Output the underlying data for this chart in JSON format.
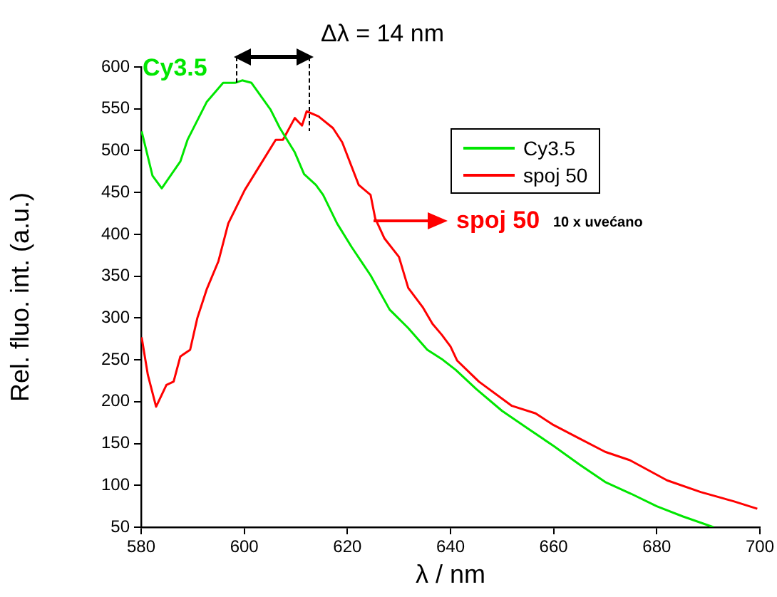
{
  "chart_data": {
    "type": "line",
    "xlabel": "λ / nm",
    "ylabel": "Rel. fluo. int. (a.u.)",
    "xlim": [
      580,
      700
    ],
    "xticks": [
      580,
      600,
      620,
      640,
      660,
      680,
      700
    ],
    "ylim": [
      50,
      600
    ],
    "yticks": [
      50,
      100,
      150,
      200,
      250,
      300,
      350,
      400,
      450,
      500,
      550,
      600
    ],
    "grid": false,
    "legend": "top right",
    "marker": "none",
    "line_style": "solid",
    "annotations": [
      "Cy3.5",
      "Δλ = 14 nm",
      "spoj 50",
      "10 x uvećano"
    ],
    "series": [
      {
        "name": "Cy3.5",
        "color": "#00e600",
        "x": [
          580.1,
          582.2,
          584,
          587.6,
          589,
          592.7,
          595.9,
          598.2,
          599.6,
          601.4,
          605.1,
          606.9,
          609.8,
          611.6,
          613.9,
          615.3,
          618,
          620.8,
          624.5,
          628.2,
          631.8,
          635.5,
          638.3,
          641,
          645,
          650,
          655,
          660,
          665,
          670,
          675,
          680,
          685,
          691
        ],
        "values": [
          523,
          470,
          455,
          487,
          513,
          558,
          581,
          581,
          584,
          581,
          549,
          527,
          498,
          472,
          459,
          447,
          413,
          385,
          351,
          310,
          288,
          262,
          251,
          238,
          215,
          189,
          168,
          147,
          125,
          104,
          90,
          75,
          63,
          50
        ]
      },
      {
        "name": "spoj 50",
        "color": "#ff0000",
        "x": [
          580.1,
          581.3,
          582.9,
          584.9,
          586.3,
          587.6,
          589.5,
          590.9,
          592.7,
          595,
          596.9,
          600.1,
          602.4,
          606.1,
          607.5,
          609.8,
          611.2,
          612.1,
          614.4,
          617.2,
          619,
          622.2,
          624.5,
          625.4,
          627.2,
          630,
          631.8,
          634.6,
          636.5,
          638.3,
          640,
          641.3,
          645.5,
          651.9,
          656.5,
          660,
          664.7,
          670,
          674.8,
          682,
          688.5,
          694.9,
          699.5
        ],
        "values": [
          277,
          232,
          194,
          220,
          224,
          254,
          262,
          300,
          334,
          368,
          413,
          453,
          476,
          513,
          513,
          539,
          530,
          547,
          541,
          527,
          510,
          459,
          447,
          419,
          395,
          373,
          336,
          313,
          293,
          280,
          266,
          249,
          224,
          195,
          186,
          172,
          157,
          140,
          130,
          106,
          92,
          81,
          72
        ]
      }
    ]
  }
}
